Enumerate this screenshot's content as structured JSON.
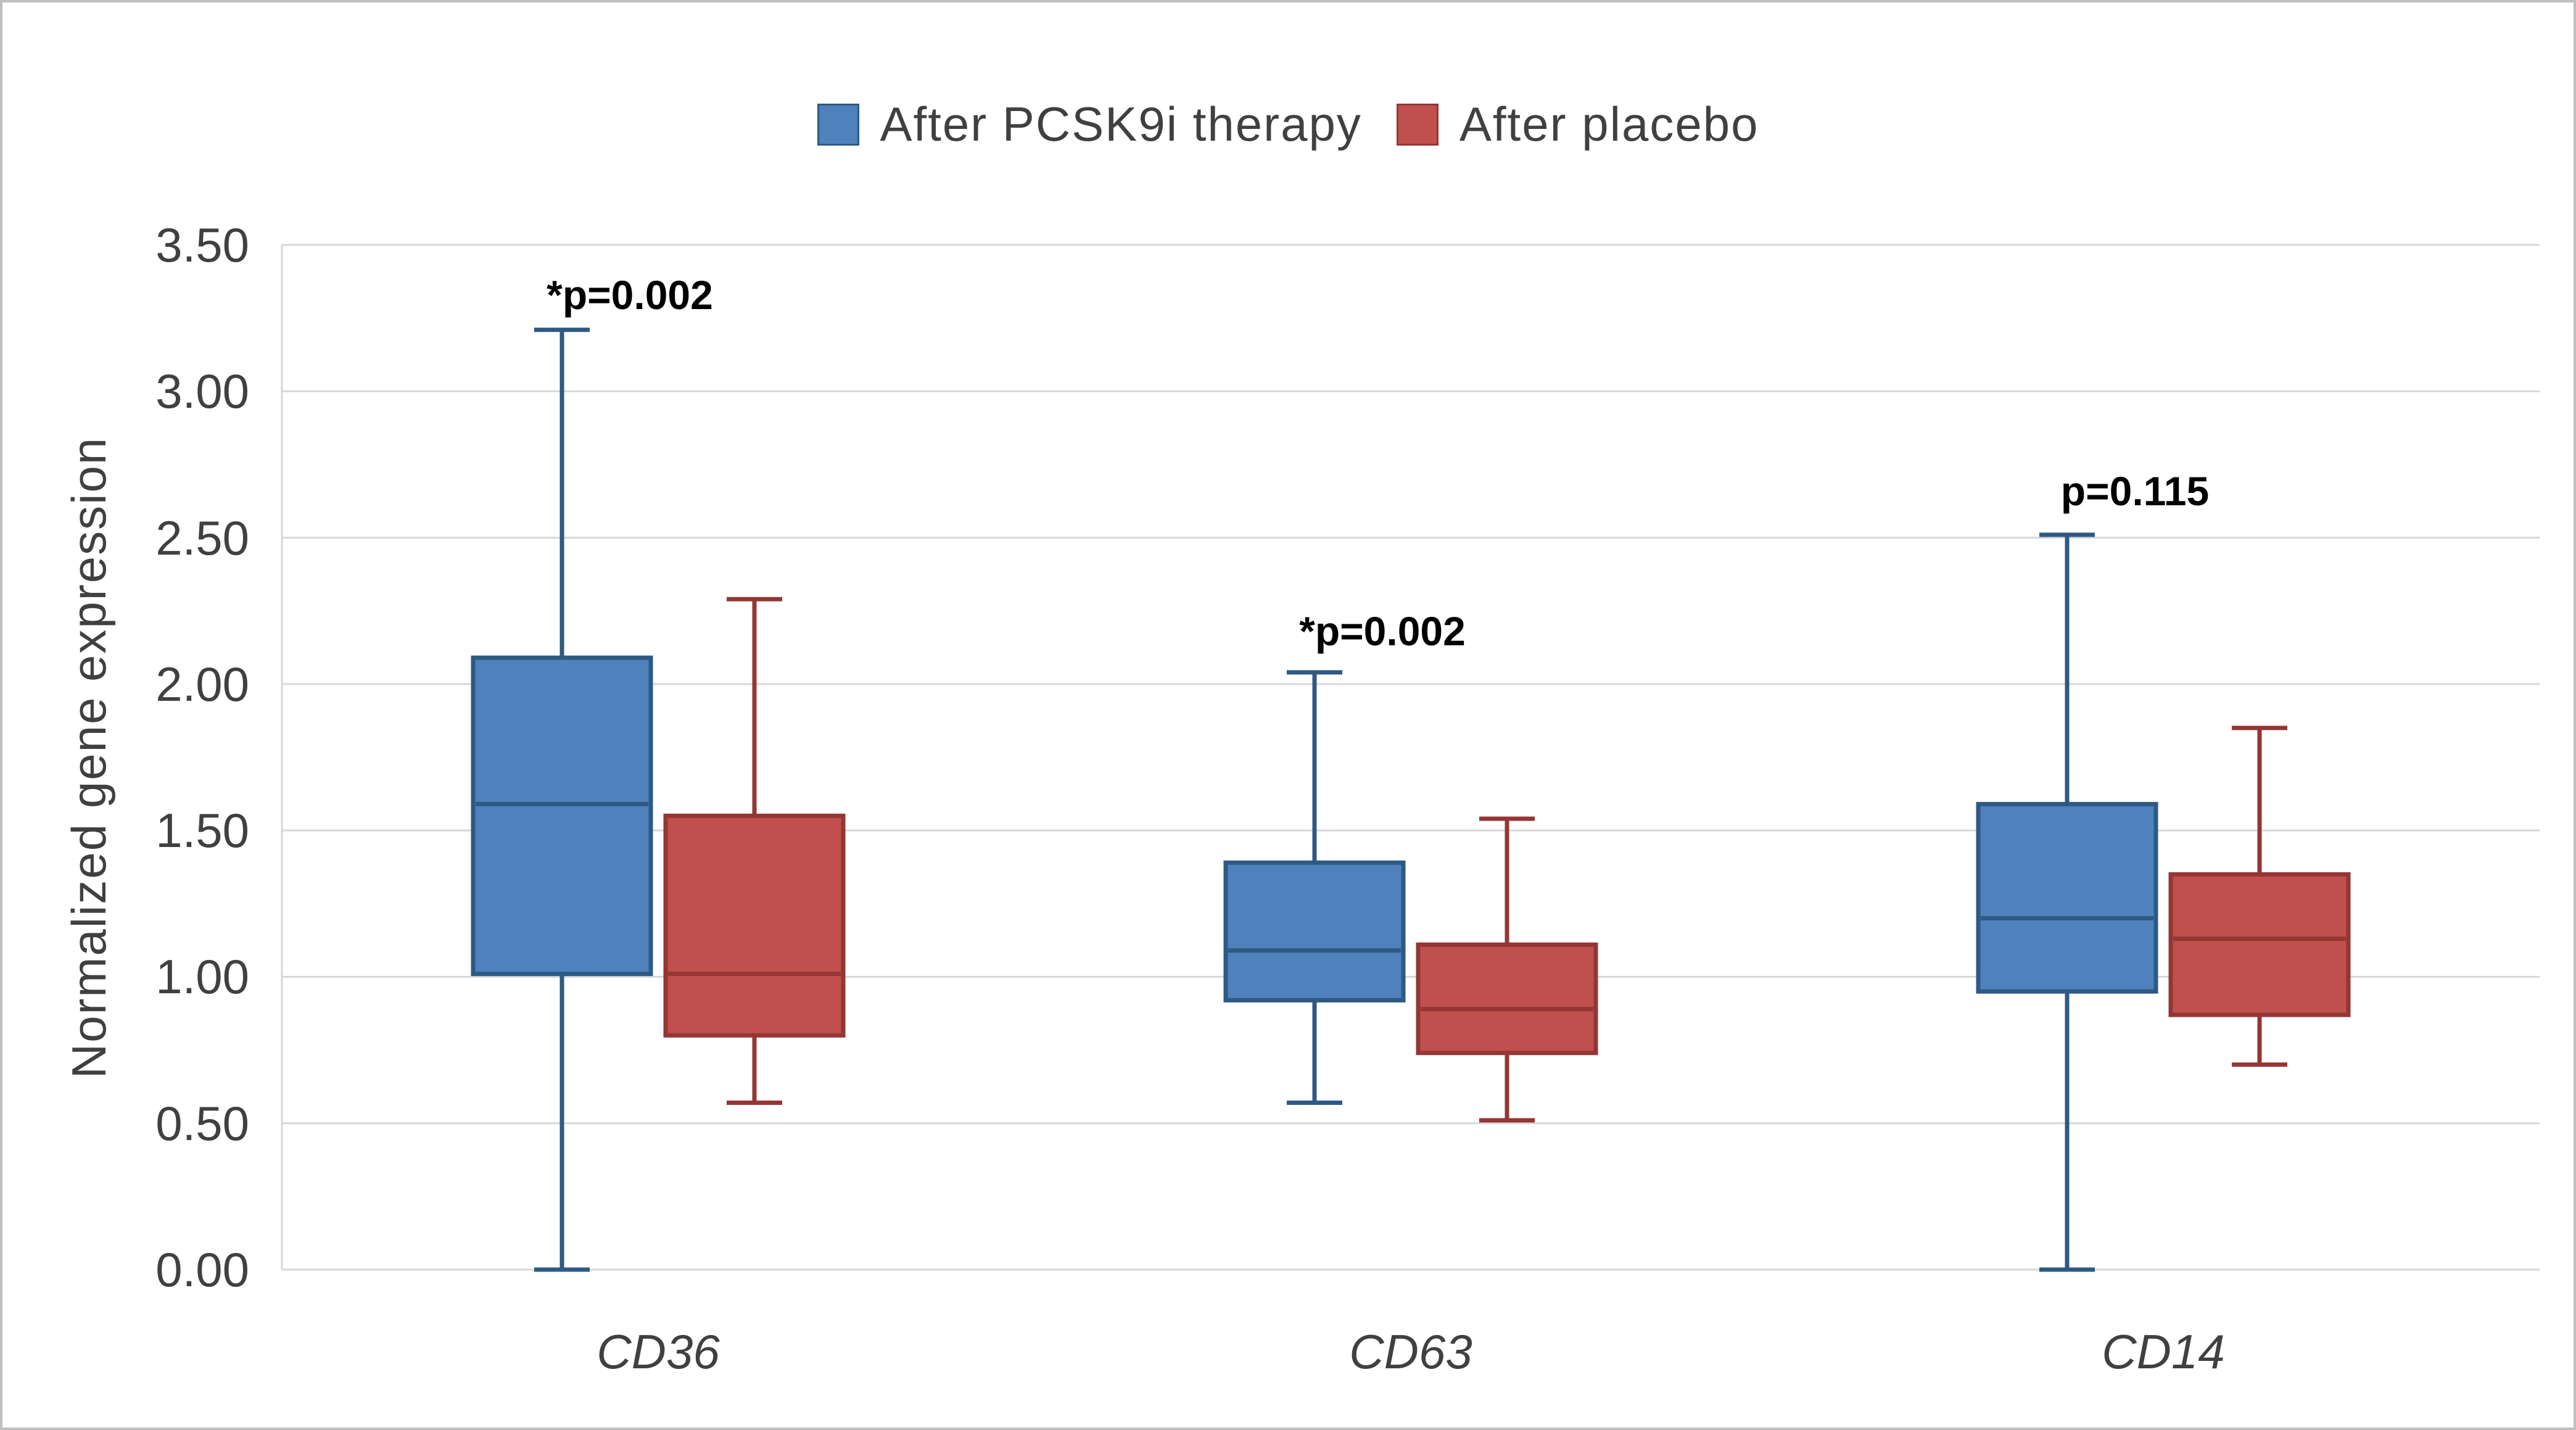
{
  "frame": {
    "background": "#FFFFFF",
    "border_color": "#BFBFBF"
  },
  "colors": {
    "label_text": "#404040",
    "annotation_text": "#000000",
    "gridline": "#D7D7D7",
    "axis_line": "#D7D7D7"
  },
  "chart_data": {
    "type": "boxplot",
    "title": "",
    "xlabel": "",
    "ylabel": "Normalized gene expression",
    "ylim": [
      0,
      3.5
    ],
    "ytick_step": 0.5,
    "ytick_labels": [
      "0.00",
      "0.50",
      "1.00",
      "1.50",
      "2.00",
      "2.50",
      "3.00",
      "3.50"
    ],
    "grid": true,
    "legend_position": "top-center",
    "categories": [
      "CD36",
      "CD63",
      "CD14"
    ],
    "series": [
      {
        "name": "After PCSK9i therapy",
        "fill": "#4F81BD",
        "border": "#2E5984",
        "median_color": "#2E5984",
        "boxes": [
          {
            "category": "CD36",
            "min": 0.0,
            "q1": 1.01,
            "median": 1.59,
            "q3": 2.09,
            "max": 3.21
          },
          {
            "category": "CD63",
            "min": 0.57,
            "q1": 0.92,
            "median": 1.09,
            "q3": 1.39,
            "max": 2.04
          },
          {
            "category": "CD14",
            "min": 0.0,
            "q1": 0.95,
            "median": 1.2,
            "q3": 1.59,
            "max": 2.51
          }
        ]
      },
      {
        "name": "After placebo",
        "fill": "#C0504D",
        "border": "#943634",
        "median_color": "#943634",
        "boxes": [
          {
            "category": "CD36",
            "min": 0.57,
            "q1": 0.8,
            "median": 1.01,
            "q3": 1.55,
            "max": 2.29
          },
          {
            "category": "CD63",
            "min": 0.51,
            "q1": 0.74,
            "median": 0.89,
            "q3": 1.11,
            "max": 1.54
          },
          {
            "category": "CD14",
            "min": 0.7,
            "q1": 0.87,
            "median": 1.13,
            "q3": 1.35,
            "max": 1.85
          }
        ]
      }
    ],
    "annotations": [
      {
        "category": "CD36",
        "text": "*p=0.002",
        "y_value": 3.33
      },
      {
        "category": "CD63",
        "text": "*p=0.002",
        "y_value": 2.18
      },
      {
        "category": "CD14",
        "text": "p=0.115",
        "y_value": 2.66
      }
    ]
  }
}
